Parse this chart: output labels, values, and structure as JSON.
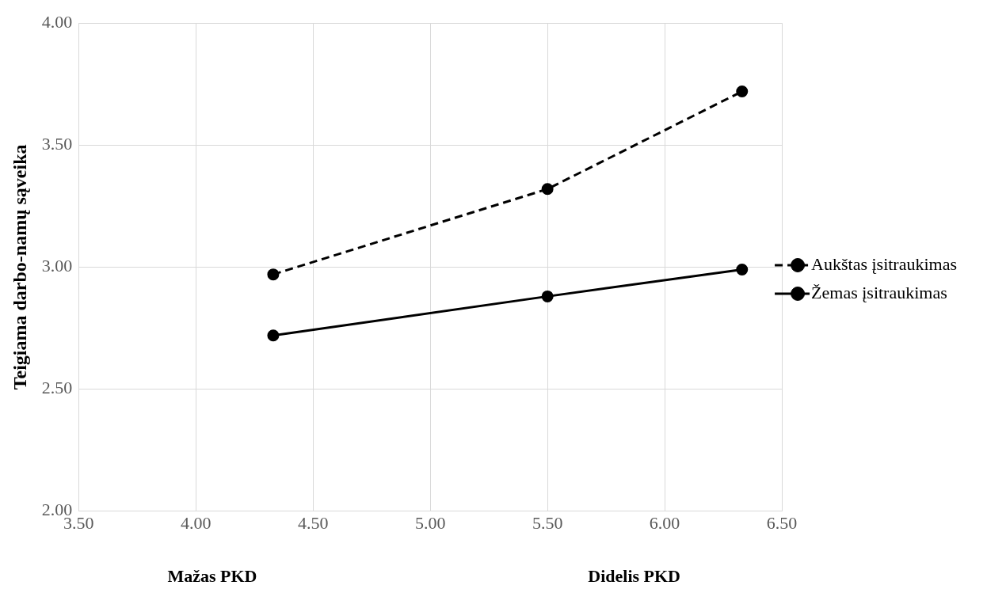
{
  "chart_data": {
    "type": "line",
    "ylabel": "Teigiama darbo-namų sąveika",
    "x": [
      4.33,
      5.5,
      6.33
    ],
    "series": [
      {
        "name": "Aukštas įsitraukimas",
        "color": "#000000",
        "values": [
          2.97,
          3.32,
          3.72
        ],
        "line_style": "dashed"
      },
      {
        "name": "Žemas įsitraukimas",
        "color": "#000000",
        "values": [
          2.72,
          2.88,
          2.99
        ],
        "line_style": "solid"
      }
    ],
    "xlim": [
      3.5,
      6.5
    ],
    "xticks": [
      {
        "value": 3.5,
        "label": "3.50"
      },
      {
        "value": 4,
        "label": "4.00"
      },
      {
        "value": 4.5,
        "label": "4.50"
      },
      {
        "value": 5,
        "label": "5.00"
      },
      {
        "value": 5.5,
        "label": "5.50"
      },
      {
        "value": 6,
        "label": "6.00"
      },
      {
        "value": 6.5,
        "label": "6.50"
      }
    ],
    "ylim": [
      2,
      4
    ],
    "yticks": [
      {
        "value": 2,
        "label": "2.00"
      },
      {
        "value": 2.5,
        "label": "2.50"
      },
      {
        "value": 3,
        "label": "3.00"
      },
      {
        "value": 3.5,
        "label": "3.50"
      },
      {
        "value": 4,
        "label": "4.00"
      }
    ],
    "annotations": [
      "Mažas PKD",
      "Didelis PKD"
    ],
    "grid": true,
    "legend": "right",
    "marker": "circle"
  }
}
